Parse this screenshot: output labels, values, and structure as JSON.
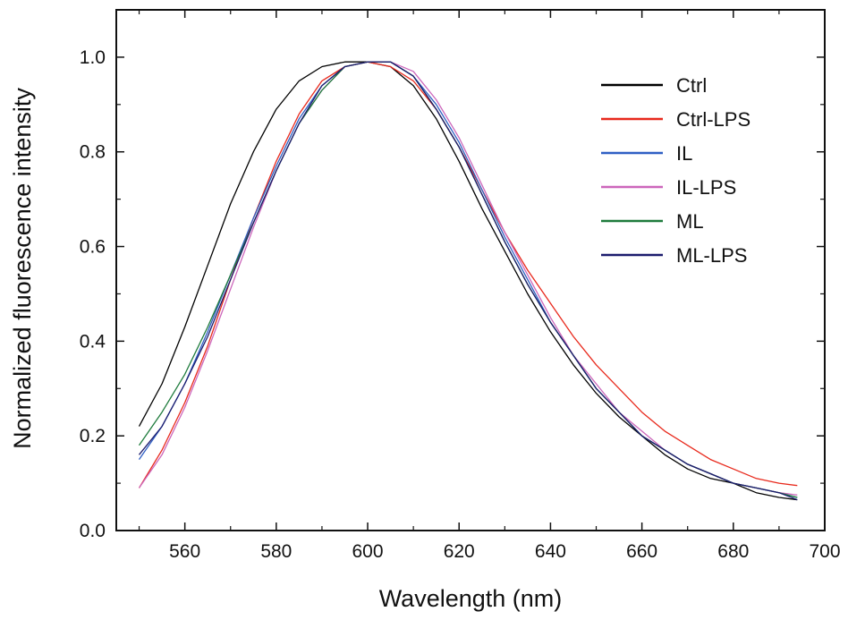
{
  "chart_data": {
    "type": "line",
    "xlabel": "Wavelength (nm)",
    "ylabel": "Normalized fluorescence intensity",
    "xlim": [
      545,
      700
    ],
    "ylim": [
      0.0,
      1.1
    ],
    "xticks": [
      560,
      580,
      600,
      620,
      640,
      660,
      680,
      700
    ],
    "yticks": [
      0.0,
      0.2,
      0.4,
      0.6,
      0.8,
      1.0
    ],
    "xtick_labels": [
      "560",
      "580",
      "600",
      "620",
      "640",
      "660",
      "680",
      "700"
    ],
    "ytick_labels": [
      "0.0",
      "0.2",
      "0.4",
      "0.6",
      "0.8",
      "1.0"
    ],
    "grid": false,
    "legend_position": "top-right",
    "x": [
      550,
      555,
      560,
      565,
      570,
      575,
      580,
      585,
      590,
      595,
      600,
      605,
      610,
      615,
      620,
      625,
      630,
      635,
      640,
      645,
      650,
      655,
      660,
      665,
      670,
      675,
      680,
      685,
      690,
      694
    ],
    "series": [
      {
        "name": "Ctrl",
        "color": "#000000",
        "values": [
          0.22,
          0.31,
          0.43,
          0.56,
          0.69,
          0.8,
          0.89,
          0.95,
          0.98,
          0.99,
          0.99,
          0.98,
          0.94,
          0.87,
          0.78,
          0.68,
          0.59,
          0.5,
          0.42,
          0.35,
          0.29,
          0.24,
          0.2,
          0.16,
          0.13,
          0.11,
          0.1,
          0.08,
          0.07,
          0.065
        ]
      },
      {
        "name": "Ctrl-LPS",
        "color": "#e8291c",
        "values": [
          0.09,
          0.17,
          0.27,
          0.39,
          0.53,
          0.66,
          0.78,
          0.88,
          0.95,
          0.98,
          0.99,
          0.98,
          0.95,
          0.89,
          0.81,
          0.72,
          0.63,
          0.55,
          0.48,
          0.41,
          0.35,
          0.3,
          0.25,
          0.21,
          0.18,
          0.15,
          0.13,
          0.11,
          0.1,
          0.095
        ]
      },
      {
        "name": "IL",
        "color": "#2f5fc4",
        "values": [
          0.15,
          0.22,
          0.31,
          0.42,
          0.54,
          0.66,
          0.77,
          0.87,
          0.94,
          0.98,
          0.99,
          0.99,
          0.96,
          0.9,
          0.82,
          0.72,
          0.62,
          0.53,
          0.44,
          0.37,
          0.3,
          0.25,
          0.2,
          0.17,
          0.14,
          0.12,
          0.1,
          0.09,
          0.08,
          0.07
        ]
      },
      {
        "name": "IL-LPS",
        "color": "#cc66bb",
        "values": [
          0.09,
          0.16,
          0.26,
          0.38,
          0.51,
          0.64,
          0.76,
          0.86,
          0.93,
          0.98,
          0.99,
          0.99,
          0.97,
          0.91,
          0.83,
          0.73,
          0.63,
          0.54,
          0.45,
          0.37,
          0.31,
          0.25,
          0.21,
          0.17,
          0.14,
          0.12,
          0.1,
          0.09,
          0.08,
          0.075
        ]
      },
      {
        "name": "ML",
        "color": "#1e7b3c",
        "values": [
          0.18,
          0.25,
          0.33,
          0.43,
          0.54,
          0.65,
          0.76,
          0.86,
          0.93,
          0.98,
          0.99,
          0.99,
          0.96,
          0.89,
          0.81,
          0.71,
          0.61,
          0.52,
          0.44,
          0.37,
          0.3,
          0.25,
          0.2,
          0.17,
          0.14,
          0.12,
          0.1,
          0.09,
          0.08,
          0.07
        ]
      },
      {
        "name": "ML-LPS",
        "color": "#1c1c6e",
        "values": [
          0.16,
          0.22,
          0.31,
          0.41,
          0.53,
          0.65,
          0.76,
          0.86,
          0.94,
          0.98,
          0.99,
          0.99,
          0.96,
          0.89,
          0.81,
          0.71,
          0.61,
          0.52,
          0.44,
          0.37,
          0.3,
          0.25,
          0.2,
          0.17,
          0.14,
          0.12,
          0.1,
          0.09,
          0.08,
          0.065
        ]
      }
    ]
  }
}
